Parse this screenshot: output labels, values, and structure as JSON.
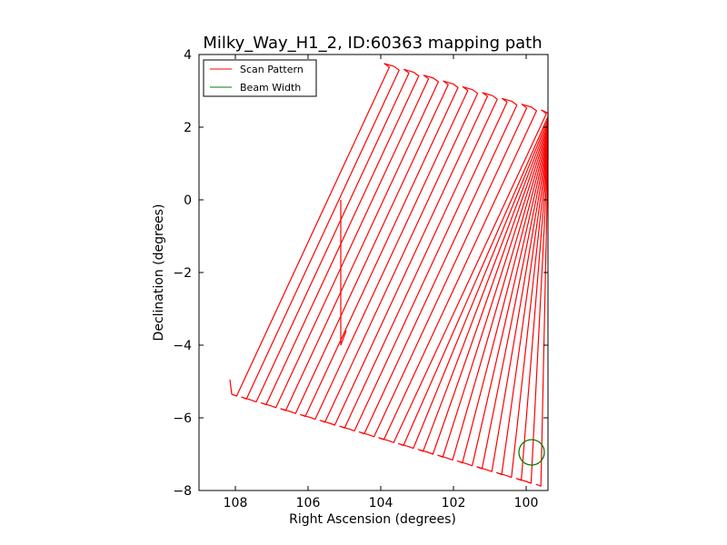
{
  "chart_data": {
    "type": "line",
    "title": "Milky_Way_H1_2, ID:60363 mapping path",
    "xlabel": "Right Ascension (degrees)",
    "ylabel": "Declination (degrees)",
    "xlim": [
      109,
      99.4
    ],
    "ylim": [
      -8,
      4
    ],
    "x_ticks": [
      108,
      106,
      104,
      102,
      100
    ],
    "x_tick_labels": [
      "108",
      "106",
      "104",
      "102",
      "100"
    ],
    "y_ticks": [
      4,
      2,
      0,
      -2,
      -4,
      -6,
      -8
    ],
    "y_tick_labels": [
      "4",
      "2",
      "0",
      "−2",
      "−4",
      "−6",
      "−8"
    ],
    "grid": false,
    "legend_position": "top-left",
    "series": [
      {
        "name": "Scan Pattern",
        "color": "#ff0000",
        "stripe_count": 32,
        "stripe_start_bottom": [
          108.1,
          -5.35
        ],
        "stripe_start_top": [
          103.9,
          3.75
        ],
        "stripe_step": [
          -0.27,
          -0.08
        ],
        "center_segment": {
          "x": [
            105.1,
            105.1,
            104.95
          ],
          "y": [
            0,
            -4,
            -3.6
          ]
        }
      },
      {
        "name": "Beam Width",
        "color": "#008000",
        "center": [
          99.85,
          -6.95
        ],
        "radius_deg": 0.35
      }
    ]
  }
}
